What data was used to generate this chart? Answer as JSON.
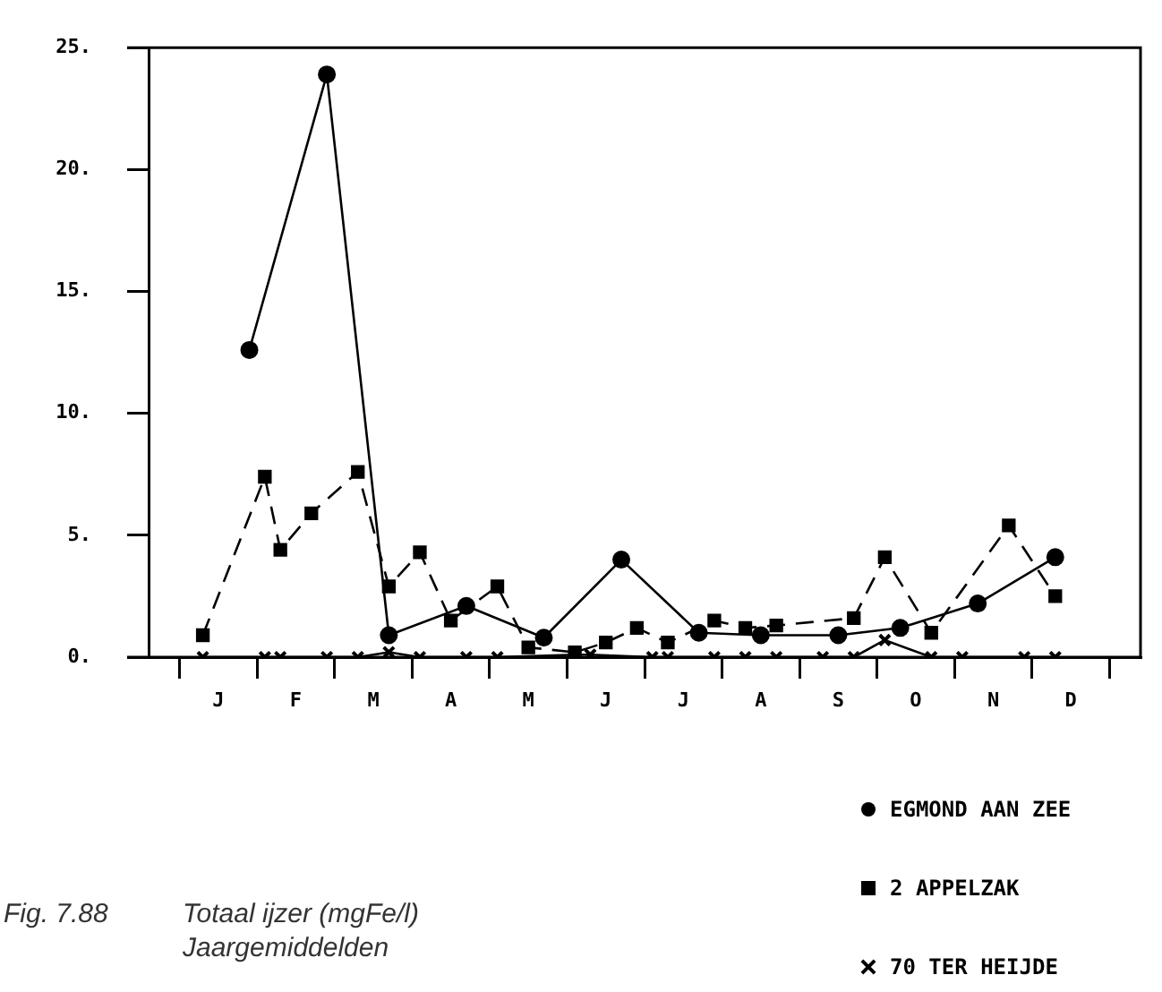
{
  "chart_data": {
    "type": "line",
    "categories": [
      null,
      null,
      null,
      null,
      "J",
      null,
      null,
      null,
      null,
      "F",
      null,
      null,
      null,
      null,
      "M",
      null,
      null,
      null,
      null,
      "A",
      null,
      null,
      null,
      null,
      "M",
      null,
      null,
      null,
      null,
      "J",
      null,
      null,
      null,
      null,
      "J",
      null,
      null,
      null,
      null,
      "A",
      null,
      null,
      null,
      null,
      "S",
      null,
      null,
      null,
      null,
      "O",
      null,
      null,
      null,
      null,
      "N",
      null,
      null,
      null,
      null,
      "D",
      null,
      null,
      null,
      null
    ],
    "ylim": [
      0,
      25
    ],
    "yticks": [
      {
        "value": 0,
        "label": "0."
      },
      {
        "value": 5,
        "label": "5."
      },
      {
        "value": 10,
        "label": "10."
      },
      {
        "value": 15,
        "label": "15."
      },
      {
        "value": 20,
        "label": "20."
      },
      {
        "value": 25,
        "label": "25."
      }
    ],
    "grid": false,
    "legend": "bottom right",
    "series": [
      {
        "name": "EGMOND AAN ZEE",
        "color": "#000000",
        "marker": "circle",
        "line_style": "solid",
        "values": [
          null,
          null,
          null,
          null,
          null,
          null,
          12.6,
          null,
          null,
          null,
          null,
          23.9,
          null,
          null,
          null,
          0.9,
          null,
          null,
          null,
          null,
          2.1,
          null,
          null,
          null,
          null,
          0.8,
          null,
          null,
          null,
          null,
          4.0,
          null,
          null,
          null,
          null,
          1.0,
          null,
          null,
          null,
          0.9,
          null,
          null,
          null,
          null,
          0.9,
          null,
          null,
          null,
          1.2,
          null,
          null,
          null,
          null,
          2.2,
          null,
          null,
          null,
          null,
          4.1,
          null,
          null,
          null,
          null,
          null
        ]
      },
      {
        "name": "2 APPELZAK",
        "color": "#000000",
        "marker": "square",
        "line_style": "dashed",
        "values": [
          null,
          null,
          null,
          0.9,
          null,
          null,
          null,
          7.4,
          4.4,
          null,
          5.9,
          null,
          null,
          7.6,
          null,
          2.9,
          null,
          4.3,
          null,
          1.5,
          null,
          null,
          2.9,
          null,
          0.4,
          null,
          null,
          0.2,
          null,
          0.6,
          null,
          1.2,
          null,
          0.6,
          null,
          null,
          1.5,
          null,
          1.2,
          null,
          1.3,
          null,
          null,
          null,
          null,
          1.6,
          null,
          4.1,
          null,
          null,
          1.0,
          null,
          null,
          null,
          null,
          5.4,
          null,
          null,
          2.5,
          null,
          null,
          null,
          null,
          null
        ]
      },
      {
        "name": "70 TER HEIJDE",
        "color": "#000000",
        "marker": "cross",
        "line_style": "solid",
        "values": [
          null,
          null,
          null,
          0,
          null,
          null,
          null,
          0,
          0,
          null,
          null,
          0,
          null,
          0,
          null,
          0.2,
          null,
          0,
          null,
          null,
          0,
          null,
          0,
          null,
          null,
          null,
          null,
          0.1,
          0.1,
          null,
          null,
          null,
          0,
          0,
          null,
          null,
          0,
          null,
          0,
          null,
          0,
          null,
          null,
          0,
          null,
          0,
          null,
          0.7,
          null,
          null,
          0,
          null,
          0,
          null,
          null,
          null,
          0,
          null,
          0,
          null,
          null,
          null,
          null,
          null
        ]
      }
    ],
    "annotations": [
      "Fig. 7.88",
      "Totaal ijzer (mgFe/l)",
      "Jaargemiddelden"
    ]
  }
}
